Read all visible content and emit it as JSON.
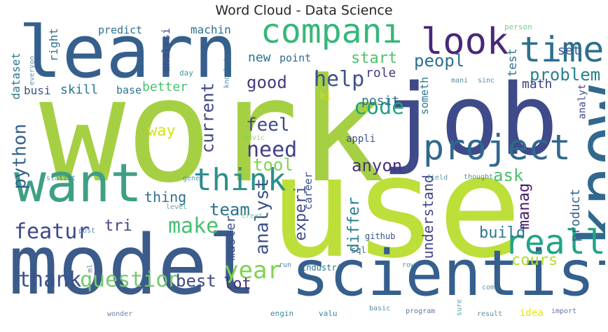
{
  "chart_data": {
    "type": "wordcloud",
    "title": "Word Cloud - Data Science",
    "words": [
      {
        "text": "work",
        "rank": 1,
        "color": "#a5d043",
        "orientation": "horizontal"
      },
      {
        "text": "use",
        "rank": 2,
        "color": "#bcdf3a",
        "orientation": "horizontal"
      },
      {
        "text": "model",
        "rank": 3,
        "color": "#3b5b8a",
        "orientation": "horizontal"
      },
      {
        "text": "learn",
        "rank": 4,
        "color": "#35608d",
        "orientation": "horizontal"
      },
      {
        "text": "job",
        "rank": 5,
        "color": "#3e4a89",
        "orientation": "horizontal"
      },
      {
        "text": "scientist",
        "rank": 6,
        "color": "#355f8d",
        "orientation": "horizontal"
      },
      {
        "text": "know",
        "rank": 7,
        "color": "#31688e",
        "orientation": "vertical"
      },
      {
        "text": "want",
        "rank": 8,
        "color": "#3f9f84",
        "orientation": "horizontal"
      },
      {
        "text": "look",
        "rank": 9,
        "color": "#482878",
        "orientation": "horizontal"
      },
      {
        "text": "compani",
        "rank": 10,
        "color": "#36b779",
        "orientation": "horizontal"
      },
      {
        "text": "time",
        "rank": 11,
        "color": "#2e6f8e",
        "orientation": "horizontal"
      },
      {
        "text": "project",
        "rank": 12,
        "color": "#31688e",
        "orientation": "horizontal"
      },
      {
        "text": "think",
        "rank": 13,
        "color": "#2c8f8c",
        "orientation": "horizontal"
      },
      {
        "text": "realli",
        "rank": 14,
        "color": "#20a486",
        "orientation": "horizontal"
      },
      {
        "text": "question",
        "rank": 15,
        "color": "#74c96e",
        "orientation": "horizontal"
      },
      {
        "text": "year",
        "rank": 16,
        "color": "#7ed34f",
        "orientation": "horizontal"
      },
      {
        "text": "code",
        "rank": 17,
        "color": "#20a386",
        "orientation": "horizontal"
      },
      {
        "text": "help",
        "rank": 18,
        "color": "#3b528b",
        "orientation": "horizontal"
      },
      {
        "text": "need",
        "rank": 19,
        "color": "#424086",
        "orientation": "horizontal"
      },
      {
        "text": "make",
        "rank": 20,
        "color": "#46c06f",
        "orientation": "horizontal"
      },
      {
        "text": "thank",
        "rank": 21,
        "color": "#3b528b",
        "orientation": "horizontal"
      },
      {
        "text": "featur",
        "rank": 22,
        "color": "#3e4989",
        "orientation": "horizontal"
      },
      {
        "text": "python",
        "rank": 23,
        "color": "#355f8d",
        "orientation": "vertical"
      },
      {
        "text": "problem",
        "rank": 24,
        "color": "#26828e",
        "orientation": "horizontal"
      },
      {
        "text": "feel",
        "rank": 25,
        "color": "#3f4889",
        "orientation": "horizontal"
      },
      {
        "text": "good",
        "rank": 26,
        "color": "#443a83",
        "orientation": "horizontal"
      },
      {
        "text": "peopl",
        "rank": 27,
        "color": "#2d708e",
        "orientation": "horizontal"
      },
      {
        "text": "start",
        "rank": 28,
        "color": "#4ec36b",
        "orientation": "horizontal"
      },
      {
        "text": "team",
        "rank": 29,
        "color": "#2c728e",
        "orientation": "horizontal"
      },
      {
        "text": "tool",
        "rank": 30,
        "color": "#7ed34f",
        "orientation": "horizontal"
      },
      {
        "text": "anyon",
        "rank": 31,
        "color": "#46337f",
        "orientation": "horizontal"
      },
      {
        "text": "ask",
        "rank": 32,
        "color": "#4ac16d",
        "orientation": "horizontal"
      },
      {
        "text": "best",
        "rank": 33,
        "color": "#3e4c8a",
        "orientation": "horizontal"
      },
      {
        "text": "cours",
        "rank": 34,
        "color": "#b2dd2c",
        "orientation": "horizontal"
      },
      {
        "text": "analyst",
        "rank": 35,
        "color": "#3b528b",
        "orientation": "vertical"
      },
      {
        "text": "tri",
        "rank": 36,
        "color": "#414487",
        "orientation": "horizontal"
      },
      {
        "text": "build",
        "rank": 37,
        "color": "#2a788e",
        "orientation": "horizontal"
      },
      {
        "text": "current",
        "rank": 38,
        "color": "#414487",
        "orientation": "vertical"
      },
      {
        "text": "experi",
        "rank": 39,
        "color": "#3e4989",
        "orientation": "vertical"
      },
      {
        "text": "differ",
        "rank": 40,
        "color": "#27808e",
        "orientation": "vertical"
      },
      {
        "text": "manag",
        "rank": 41,
        "color": "#481a6c",
        "orientation": "vertical"
      },
      {
        "text": "understand",
        "rank": 42,
        "color": "#414487",
        "orientation": "vertical"
      },
      {
        "text": "lot",
        "rank": 43,
        "color": "#46327e",
        "orientation": "horizontal"
      },
      {
        "text": "way",
        "rank": 44,
        "color": "#d2e21b",
        "orientation": "horizontal"
      },
      {
        "text": "thing",
        "rank": 45,
        "color": "#2d708e",
        "orientation": "horizontal"
      },
      {
        "text": "master",
        "rank": 46,
        "color": "#3d4e8a",
        "orientation": "vertical"
      },
      {
        "text": "test",
        "rank": 47,
        "color": "#2c728e",
        "orientation": "vertical"
      },
      {
        "text": "product",
        "rank": 48,
        "color": "#35608d",
        "orientation": "vertical"
      },
      {
        "text": "posit",
        "rank": 49,
        "color": "#2e6e8e",
        "orientation": "horizontal"
      },
      {
        "text": "skill",
        "rank": 50,
        "color": "#2a778e",
        "orientation": "horizontal"
      },
      {
        "text": "math",
        "rank": 51,
        "color": "#433e85",
        "orientation": "horizontal"
      },
      {
        "text": "role",
        "rank": 52,
        "color": "#453882",
        "orientation": "horizontal"
      },
      {
        "text": "new",
        "rank": 53,
        "color": "#2c738e",
        "orientation": "horizontal"
      },
      {
        "text": "better",
        "rank": 54,
        "color": "#4ac16d",
        "orientation": "horizontal"
      },
      {
        "text": "set",
        "rank": 55,
        "color": "#3b528b",
        "orientation": "horizontal"
      },
      {
        "text": "analyt",
        "rank": 56,
        "color": "#3e4a89",
        "orientation": "vertical"
      },
      {
        "text": "dataset",
        "rank": 57,
        "color": "#2a788e",
        "orientation": "vertical"
      },
      {
        "text": "right",
        "rank": 58,
        "color": "#2c728e",
        "orientation": "vertical"
      },
      {
        "text": "machin",
        "rank": 59,
        "color": "#2d708e",
        "orientation": "horizontal"
      },
      {
        "text": "predict",
        "rank": 60,
        "color": "#2c728e",
        "orientation": "horizontal"
      },
      {
        "text": "busi",
        "rank": 61,
        "color": "#3b528b",
        "orientation": "horizontal"
      },
      {
        "text": "base",
        "rank": 62,
        "color": "#2a788e",
        "orientation": "horizontal"
      },
      {
        "text": "point",
        "rank": 63,
        "color": "#31688e",
        "orientation": "horizontal"
      },
      {
        "text": "analysi",
        "rank": 64,
        "color": "#3e4a89",
        "orientation": "vertical"
      },
      {
        "text": "someth",
        "rank": 65,
        "color": "#2a788e",
        "orientation": "vertical"
      },
      {
        "text": "career",
        "rank": 66,
        "color": "#3b528b",
        "orientation": "vertical"
      },
      {
        "text": "appli",
        "rank": 67,
        "color": "#3b528b",
        "orientation": "horizontal"
      },
      {
        "text": "idea",
        "rank": 68,
        "color": "#e5e419",
        "orientation": "horizontal"
      },
      {
        "text": "hi",
        "rank": 69,
        "color": "#d8e219",
        "orientation": "horizontal"
      },
      {
        "text": "day",
        "rank": 70,
        "color": "#27808e",
        "orientation": "horizontal"
      },
      {
        "text": "github",
        "rank": 71,
        "color": "#3b528b",
        "orientation": "horizontal"
      },
      {
        "text": "industri",
        "rank": 72,
        "color": "#2c728e",
        "orientation": "horizontal"
      },
      {
        "text": "sql",
        "rank": 73,
        "color": "#31688e",
        "orientation": "horizontal"
      },
      {
        "text": "engin",
        "rank": 74,
        "color": "#26828e",
        "orientation": "horizontal"
      },
      {
        "text": "valu",
        "rank": 75,
        "color": "#2a788e",
        "orientation": "horizontal"
      },
      {
        "text": "person",
        "rank": 76,
        "color": "#4ac16d",
        "orientation": "horizontal"
      },
      {
        "text": "mani",
        "rank": 77,
        "color": "#2c728e",
        "orientation": "horizontal"
      },
      {
        "text": "sinc",
        "rank": 78,
        "color": "#31688e",
        "orientation": "horizontal"
      },
      {
        "text": "knowledg",
        "rank": 79,
        "color": "#2a788e",
        "orientation": "vertical"
      },
      {
        "text": "everyon",
        "rank": 80,
        "color": "#2c728e",
        "orientation": "vertical"
      },
      {
        "text": "statist",
        "rank": 81,
        "color": "#2a788e",
        "orientation": "horizontal"
      },
      {
        "text": "gener",
        "rank": 82,
        "color": "#2c728e",
        "orientation": "horizontal"
      },
      {
        "text": "advic",
        "rank": 83,
        "color": "#7ad151",
        "orientation": "horizontal"
      },
      {
        "text": "thought",
        "rank": 84,
        "color": "#2c728e",
        "orientation": "horizontal"
      },
      {
        "text": "field",
        "rank": 85,
        "color": "#2a788e",
        "orientation": "horizontal"
      },
      {
        "text": "level",
        "rank": 86,
        "color": "#2a788e",
        "orientation": "horizontal"
      },
      {
        "text": "creat",
        "rank": 87,
        "color": "#4ac16d",
        "orientation": "horizontal"
      },
      {
        "text": "post",
        "rank": 88,
        "color": "#2c728e",
        "orientation": "horizontal"
      },
      {
        "text": "ml",
        "rank": 89,
        "color": "#3b528b",
        "orientation": "horizontal"
      },
      {
        "text": "run",
        "rank": 90,
        "color": "#31688e",
        "orientation": "horizontal"
      },
      {
        "text": "row",
        "rank": 91,
        "color": "#2a788e",
        "orientation": "horizontal"
      },
      {
        "text": "come",
        "rank": 92,
        "color": "#2c728e",
        "orientation": "horizontal"
      },
      {
        "text": "sure",
        "rank": 93,
        "color": "#2a788e",
        "orientation": "vertical"
      },
      {
        "text": "wonder",
        "rank": 94,
        "color": "#3b528b",
        "orientation": "horizontal"
      },
      {
        "text": "basic",
        "rank": 95,
        "color": "#2c728e",
        "orientation": "horizontal"
      },
      {
        "text": "program",
        "rank": 96,
        "color": "#3b528b",
        "orientation": "horizontal"
      },
      {
        "text": "result",
        "rank": 97,
        "color": "#2c728e",
        "orientation": "horizontal"
      },
      {
        "text": "import",
        "rank": 98,
        "color": "#3b528b",
        "orientation": "horizontal"
      }
    ]
  }
}
